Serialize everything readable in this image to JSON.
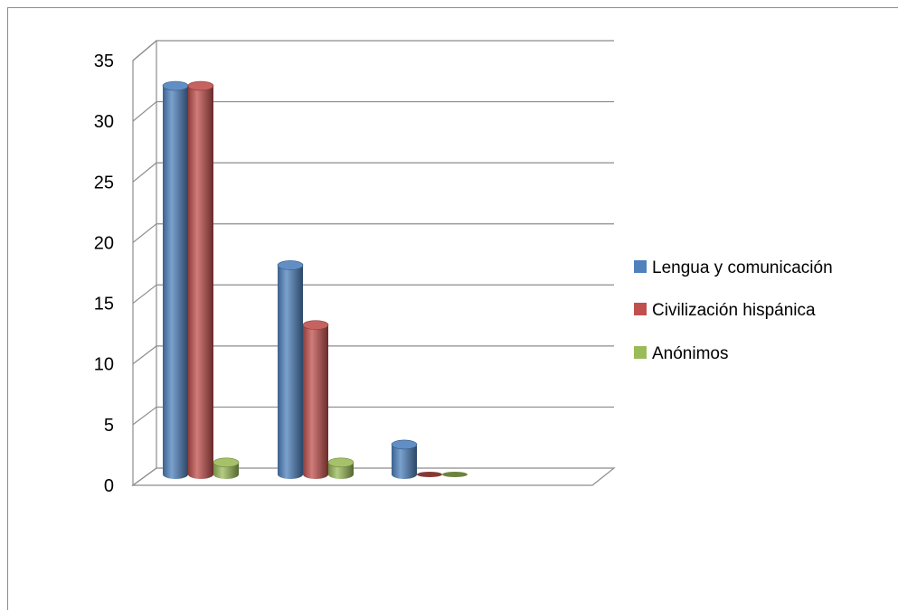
{
  "chart_data": {
    "type": "bar",
    "style": "3d-cylinder",
    "categories": [
      "",
      "",
      ""
    ],
    "series": [
      {
        "name": "Lengua y comunicación",
        "values": [
          32.5,
          17.5,
          2.5
        ],
        "color": "#4f81bd"
      },
      {
        "name": "Civilización hispánica",
        "values": [
          32.5,
          12.5,
          0
        ],
        "color": "#c0504d"
      },
      {
        "name": "Anónimos",
        "values": [
          1,
          1,
          0
        ],
        "color": "#9bbb59"
      }
    ],
    "ylim": [
      0,
      35
    ],
    "yticks": [
      "0",
      "5",
      "10",
      "15",
      "20",
      "25",
      "30",
      "35"
    ],
    "ytick_values": [
      0,
      5,
      10,
      15,
      20,
      25,
      30,
      35
    ],
    "title": "",
    "xlabel": "",
    "ylabel": "",
    "grid": true,
    "legend_position": "right"
  }
}
